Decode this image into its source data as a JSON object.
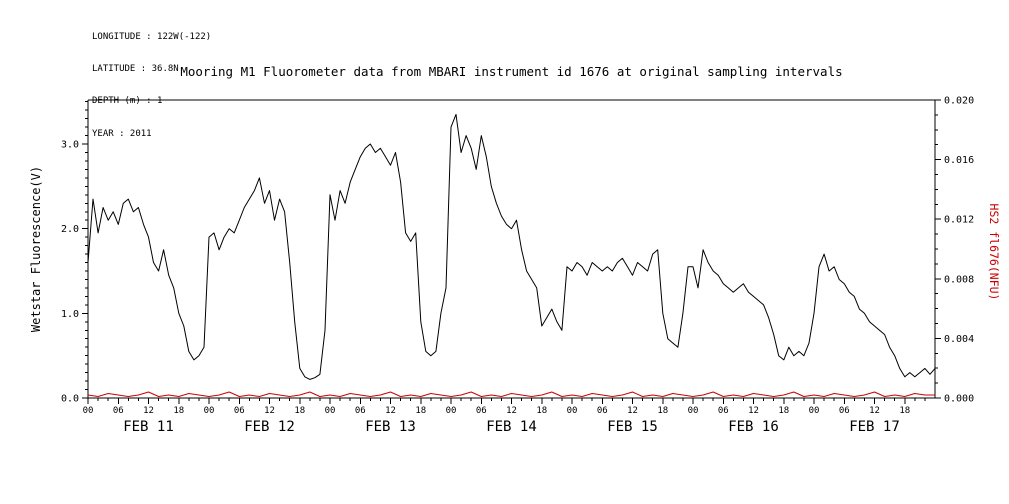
{
  "meta": {
    "longitude": "LONGITUDE : 122W(-122)",
    "latitude": "LATITUDE : 36.8N",
    "depth": "DEPTH (m) : 1",
    "year": "YEAR : 2011"
  },
  "colors": {
    "axis": "#000000",
    "accent_red": "#cc0000"
  },
  "chart_data": {
    "type": "line",
    "title": "Mooring M1 Fluorometer data from MBARI instrument id 1676 at original sampling intervals",
    "x_unit": "hours since 2011-02-11 00:00",
    "x_range": [
      0,
      168
    ],
    "x_tick_hours": [
      0,
      6,
      12,
      18
    ],
    "x_tick_labels": [
      "00",
      "06",
      "12",
      "18"
    ],
    "x_minor_tick_hours": 2,
    "day_labels": [
      "FEB 11",
      "FEB 12",
      "FEB 13",
      "FEB 14",
      "FEB 15",
      "FEB 16",
      "FEB 17"
    ],
    "grid": false,
    "legend": "none",
    "left_axis": {
      "label": "Wetstar Fluorescence(V)",
      "range": [
        0,
        3.52
      ],
      "major_ticks": [
        0,
        1,
        2,
        3
      ],
      "tick_labels": [
        "0.0",
        "1.0",
        "2.0",
        "3.0"
      ],
      "minor_step": 0.1,
      "label_color": "#000000"
    },
    "right_axis": {
      "label": "HS2 fl676(NFU)",
      "range": [
        0,
        0.02
      ],
      "major_ticks": [
        0,
        0.004,
        0.008,
        0.012,
        0.016,
        0.02
      ],
      "tick_labels": [
        "0.000",
        "0.004",
        "0.008",
        "0.012",
        "0.016",
        "0.020"
      ],
      "minor_step": 0.001,
      "label_color": "#cc0000"
    },
    "series": [
      {
        "name": "wetstar-fluorescence-series",
        "axis": "left",
        "color": "#000000",
        "x_start": 0,
        "x_step": 1,
        "y": [
          1.6,
          2.35,
          1.95,
          2.25,
          2.1,
          2.2,
          2.05,
          2.3,
          2.35,
          2.2,
          2.25,
          2.05,
          1.9,
          1.6,
          1.5,
          1.75,
          1.45,
          1.3,
          1.0,
          0.85,
          0.55,
          0.45,
          0.5,
          0.6,
          1.9,
          1.95,
          1.75,
          1.9,
          2.0,
          1.95,
          2.1,
          2.25,
          2.35,
          2.45,
          2.6,
          2.3,
          2.45,
          2.1,
          2.35,
          2.2,
          1.6,
          0.9,
          0.35,
          0.25,
          0.22,
          0.24,
          0.28,
          0.8,
          2.4,
          2.1,
          2.45,
          2.3,
          2.55,
          2.7,
          2.85,
          2.95,
          3.0,
          2.9,
          2.95,
          2.85,
          2.75,
          2.9,
          2.55,
          1.95,
          1.85,
          1.95,
          0.9,
          0.55,
          0.5,
          0.55,
          1.0,
          1.3,
          3.2,
          3.35,
          2.9,
          3.1,
          2.95,
          2.7,
          3.1,
          2.85,
          2.5,
          2.3,
          2.15,
          2.05,
          2.0,
          2.1,
          1.75,
          1.5,
          1.4,
          1.3,
          0.85,
          0.95,
          1.05,
          0.9,
          0.8,
          1.55,
          1.5,
          1.6,
          1.55,
          1.45,
          1.6,
          1.55,
          1.5,
          1.55,
          1.5,
          1.6,
          1.65,
          1.55,
          1.45,
          1.6,
          1.55,
          1.5,
          1.7,
          1.75,
          1.0,
          0.7,
          0.65,
          0.6,
          1.0,
          1.55,
          1.55,
          1.3,
          1.75,
          1.6,
          1.5,
          1.45,
          1.35,
          1.3,
          1.25,
          1.3,
          1.35,
          1.25,
          1.2,
          1.15,
          1.1,
          0.95,
          0.75,
          0.5,
          0.45,
          0.6,
          0.5,
          0.55,
          0.5,
          0.65,
          1.0,
          1.55,
          1.7,
          1.5,
          1.55,
          1.4,
          1.35,
          1.25,
          1.2,
          1.05,
          1.0,
          0.9,
          0.85,
          0.8,
          0.75,
          0.6,
          0.5,
          0.35,
          0.25,
          0.3,
          0.25,
          0.3,
          0.35,
          0.28,
          0.35
        ]
      },
      {
        "name": "hs2-fl676-series",
        "axis": "right",
        "color": "#cc0000",
        "x_start": 0,
        "x_step": 2,
        "y": [
          0.0002,
          0.0001,
          0.0003,
          0.0002,
          0.0001,
          0.0002,
          0.0004,
          0.0001,
          0.0002,
          0.0001,
          0.0003,
          0.0002,
          0.0001,
          0.0002,
          0.0004,
          0.0001,
          0.0002,
          0.0001,
          0.0003,
          0.0002,
          0.0001,
          0.0002,
          0.0004,
          0.0001,
          0.0002,
          0.0001,
          0.0003,
          0.0002,
          0.0001,
          0.0002,
          0.0004,
          0.0001,
          0.0002,
          0.0001,
          0.0003,
          0.0002,
          0.0001,
          0.0002,
          0.0004,
          0.0001,
          0.0002,
          0.0001,
          0.0003,
          0.0002,
          0.0001,
          0.0002,
          0.0004,
          0.0001,
          0.0002,
          0.0001,
          0.0003,
          0.0002,
          0.0001,
          0.0002,
          0.0004,
          0.0001,
          0.0002,
          0.0001,
          0.0003,
          0.0002,
          0.0001,
          0.0002,
          0.0004,
          0.0001,
          0.0002,
          0.0001,
          0.0003,
          0.0002,
          0.0001,
          0.0002,
          0.0004,
          0.0001,
          0.0002,
          0.0001,
          0.0003,
          0.0002,
          0.0001,
          0.0002,
          0.0004,
          0.0001,
          0.0002,
          0.0001,
          0.0003,
          0.0002,
          0.0002
        ]
      }
    ]
  }
}
